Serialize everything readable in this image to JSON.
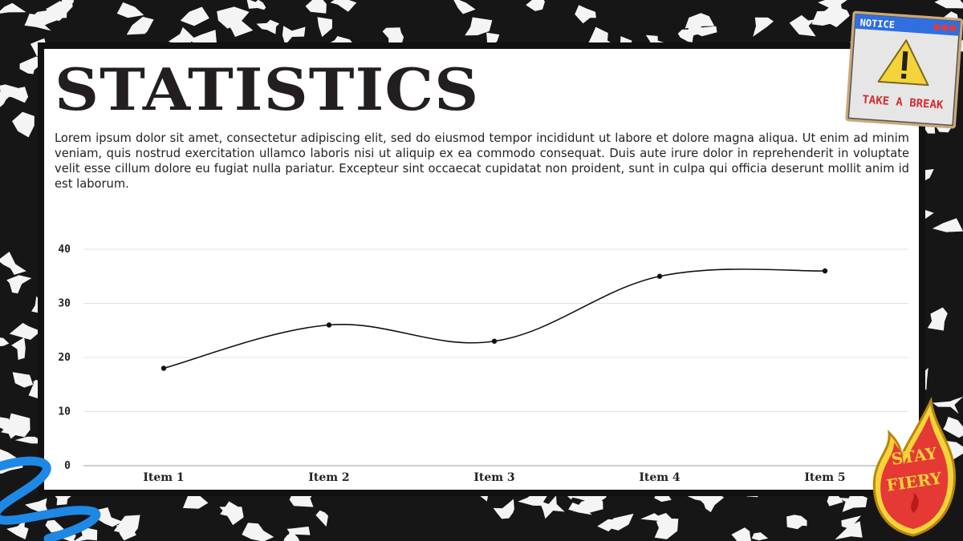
{
  "slide": {
    "title": "STATISTICS",
    "body": "Lorem ipsum dolor sit amet, consectetur adipiscing elit, sed do eiusmod tempor incididunt ut labore et dolore magna aliqua. Ut enim ad minim veniam, quis nostrud exercitation ullamco laboris nisi ut aliquip ex ea commodo consequat. Duis aute irure dolor in reprehenderit in voluptate velit esse cillum dolore eu fugiat nulla pariatur. Excepteur sint occaecat cupidatat non proident, sunt in culpa qui officia deserunt mollit anim id est laborum."
  },
  "stickers": {
    "notice": {
      "header": "NOTICE",
      "footer": "TAKE A BREAK"
    },
    "fiery": {
      "line1": "STAY",
      "line2": "FIERY"
    }
  },
  "colors": {
    "background": "#1a1a1a",
    "card": "#ffffff",
    "ink": "#231f20",
    "accent_blue": "#1e88e5",
    "accent_red": "#e53935",
    "accent_yellow": "#f5d33a"
  },
  "chart_data": {
    "type": "line",
    "smooth": true,
    "categories": [
      "Item 1",
      "Item 2",
      "Item 3",
      "Item 4",
      "Item 5"
    ],
    "series": [
      {
        "values": [
          18,
          26,
          23,
          35,
          36
        ]
      }
    ],
    "yticks": [
      0,
      10,
      20,
      30,
      40
    ],
    "ylim": [
      0,
      40
    ],
    "grid": true,
    "legend": "none"
  }
}
